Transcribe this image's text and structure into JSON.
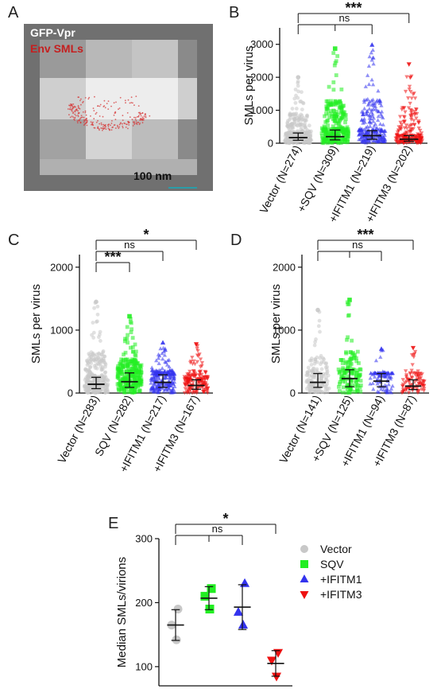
{
  "panel_a": {
    "letter": "A",
    "label_green": "GFP-Vpr",
    "label_red": "Env SMLs",
    "scalebar": "100 nm"
  },
  "chart_data": [
    {
      "id": "B",
      "type": "scatter",
      "letter": "B",
      "ylabel": "SMLs per virus",
      "ylim": [
        0,
        3500
      ],
      "yticks": [
        0,
        1000,
        2000,
        3000
      ],
      "categories": [
        "Vector (N=274)",
        "+SQV (N=309)",
        "+IFITM1 (N=219)",
        "+IFITM3 (N=202)"
      ],
      "series": [
        {
          "color": "#c8c8c8",
          "marker": "circle",
          "median": 170,
          "q1": 90,
          "q3": 310,
          "max": 2000,
          "n": 274
        },
        {
          "color": "#22ee22",
          "marker": "square",
          "median": 200,
          "q1": 100,
          "q3": 400,
          "max": 2870,
          "n": 309
        },
        {
          "color": "#3333ee",
          "marker": "triangle",
          "median": 230,
          "q1": 120,
          "q3": 380,
          "max": 2980,
          "n": 219
        },
        {
          "color": "#ee1111",
          "marker": "tridown",
          "median": 120,
          "q1": 60,
          "q3": 230,
          "max": 2400,
          "n": 202
        }
      ],
      "brackets": [
        {
          "from": 0,
          "to": 3,
          "label": "***",
          "level": 0
        },
        {
          "from": 0,
          "to": 2,
          "label": "ns",
          "level": 1,
          "split": true
        }
      ]
    },
    {
      "id": "C",
      "type": "scatter",
      "letter": "C",
      "ylabel": "SMLs per virus",
      "ylim": [
        0,
        2200
      ],
      "yticks": [
        0,
        1000,
        2000
      ],
      "categories": [
        "Vector (N=283)",
        "SQV (N=282)",
        "+IFITM1 (N=217)",
        "+IFITM3 (N=167)"
      ],
      "series": [
        {
          "color": "#c8c8c8",
          "marker": "circle",
          "median": 140,
          "q1": 70,
          "q3": 250,
          "max": 1450,
          "n": 283
        },
        {
          "color": "#22ee22",
          "marker": "square",
          "median": 180,
          "q1": 90,
          "q3": 320,
          "max": 1220,
          "n": 282
        },
        {
          "color": "#3333ee",
          "marker": "triangle",
          "median": 170,
          "q1": 90,
          "q3": 290,
          "max": 800,
          "n": 217
        },
        {
          "color": "#ee1111",
          "marker": "tridown",
          "median": 120,
          "q1": 60,
          "q3": 210,
          "max": 780,
          "n": 167
        }
      ],
      "brackets": [
        {
          "from": 0,
          "to": 3,
          "label": "*",
          "level": 0
        },
        {
          "from": 0,
          "to": 2,
          "label": "ns",
          "level": 1
        },
        {
          "from": 0,
          "to": 1,
          "label": "***",
          "level": 2
        }
      ]
    },
    {
      "id": "D",
      "type": "scatter",
      "letter": "D",
      "ylabel": "SMLs per virus",
      "ylim": [
        0,
        2200
      ],
      "yticks": [
        0,
        1000,
        2000
      ],
      "categories": [
        "Vector (N=141)",
        "+SQV (N=125)",
        "+IFITM1 (N=94)",
        "+IFITM3 (N=87)"
      ],
      "series": [
        {
          "color": "#c8c8c8",
          "marker": "circle",
          "median": 170,
          "q1": 90,
          "q3": 310,
          "max": 1320,
          "n": 141
        },
        {
          "color": "#22ee22",
          "marker": "square",
          "median": 230,
          "q1": 100,
          "q3": 370,
          "max": 1480,
          "n": 125
        },
        {
          "color": "#3333ee",
          "marker": "triangle",
          "median": 190,
          "q1": 100,
          "q3": 310,
          "max": 700,
          "n": 94
        },
        {
          "color": "#ee1111",
          "marker": "tridown",
          "median": 110,
          "q1": 55,
          "q3": 210,
          "max": 720,
          "n": 87
        }
      ],
      "brackets": [
        {
          "from": 0,
          "to": 3,
          "label": "***",
          "level": 0
        },
        {
          "from": 0,
          "to": 2,
          "label": "ns",
          "level": 1,
          "split": true
        }
      ]
    },
    {
      "id": "E",
      "type": "scatter",
      "letter": "E",
      "ylabel": "Median SMLs/virions",
      "ylim": [
        70,
        300
      ],
      "yticks": [
        100,
        200,
        300
      ],
      "categories": [
        "Vector",
        "SQV",
        "+IFITM1",
        "+IFITM3"
      ],
      "series": [
        {
          "name": "Vector",
          "color": "#c8c8c8",
          "marker": "circle",
          "points": [
            190,
            165,
            142
          ],
          "mean": 165,
          "sd": 24
        },
        {
          "name": "SQV",
          "color": "#22ee22",
          "marker": "square",
          "points": [
            222,
            210,
            190
          ],
          "mean": 207,
          "sd": 18
        },
        {
          "name": "+IFITM1",
          "color": "#3333ee",
          "marker": "triangle",
          "points": [
            230,
            185,
            165
          ],
          "mean": 193,
          "sd": 35
        },
        {
          "name": "+IFITM3",
          "color": "#ee1111",
          "marker": "tridown",
          "points": [
            122,
            110,
            85
          ],
          "mean": 105,
          "sd": 20
        }
      ],
      "brackets": [
        {
          "from": 0,
          "to": 3,
          "label": "*",
          "level": 0
        },
        {
          "from": 0,
          "to": 2,
          "label": "ns",
          "level": 1,
          "split": true
        }
      ],
      "legend": "right"
    }
  ]
}
